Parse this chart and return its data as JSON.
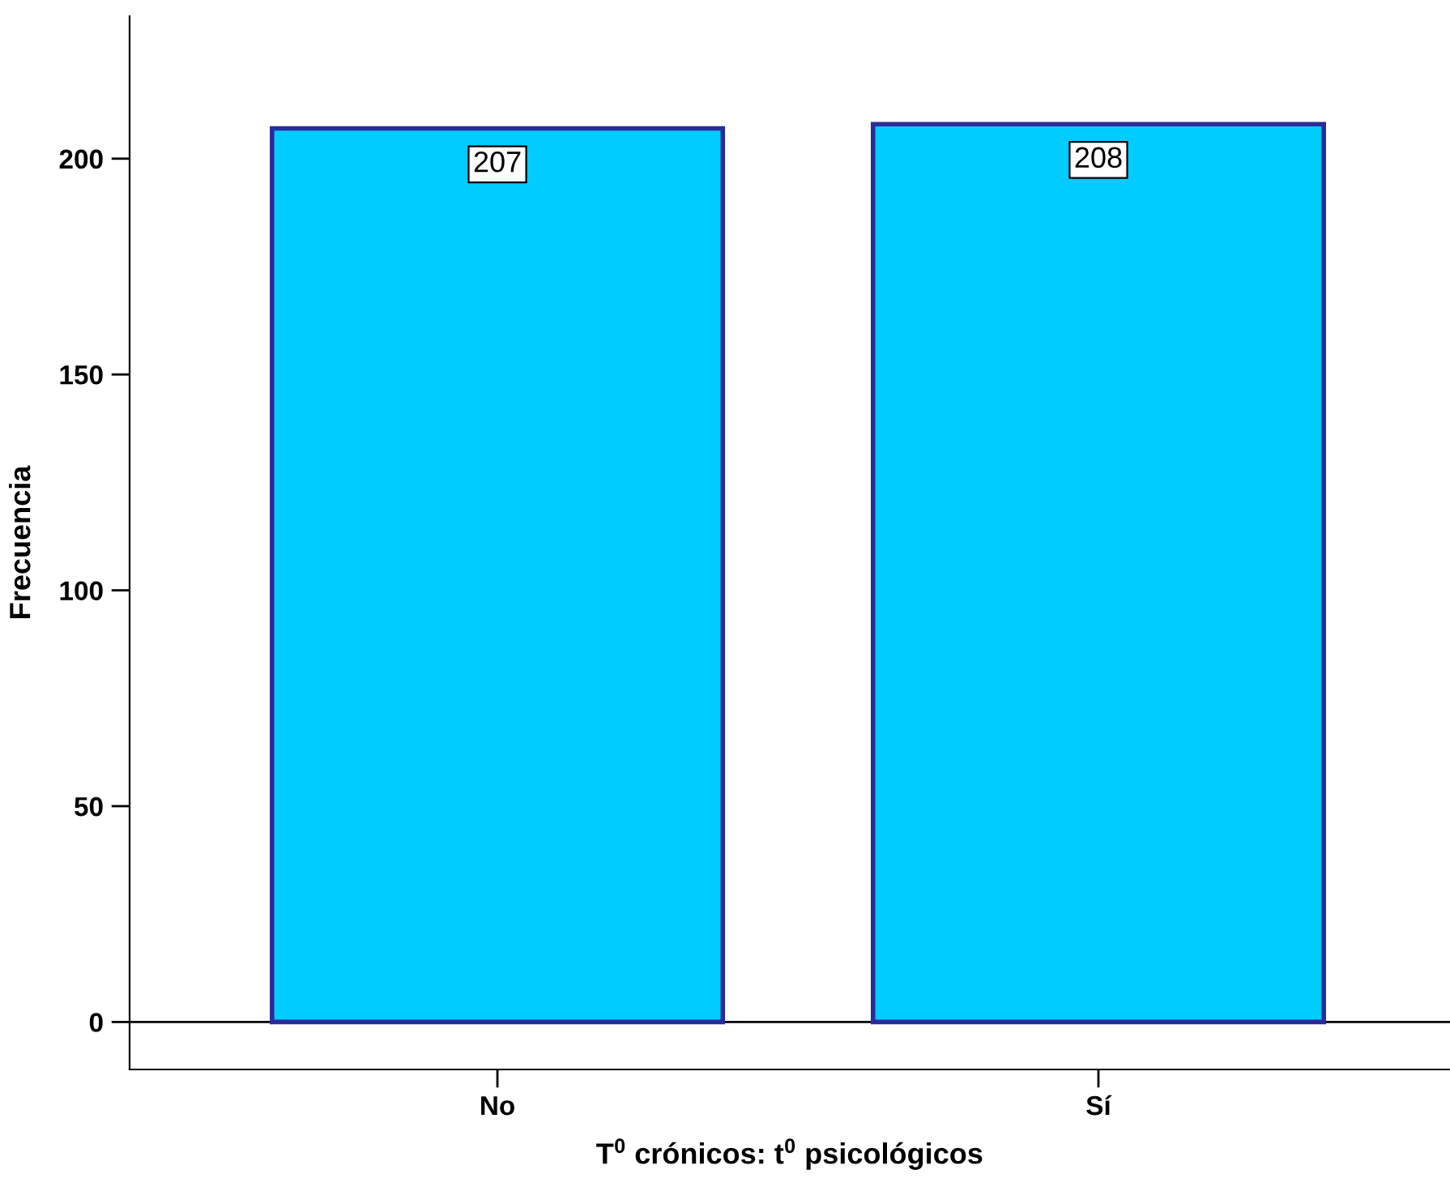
{
  "chart_data": {
    "type": "bar",
    "xlabel": "T$^{0}$ crónicos: t$^{0}$ psicológicos",
    "ylabel": "Frecuencia",
    "categories": [
      "No",
      "Sí"
    ],
    "values": [
      207,
      208
    ],
    "color": "#00ccff",
    "ylim": [
      -11,
      233
    ],
    "yticks": [
      0,
      50,
      100,
      150,
      200
    ],
    "ref_lines": [
      {
        "axis": "y",
        "value": 0,
        "color": "#000000"
      }
    ],
    "data_labels": true,
    "grid": false,
    "legend": false
  }
}
